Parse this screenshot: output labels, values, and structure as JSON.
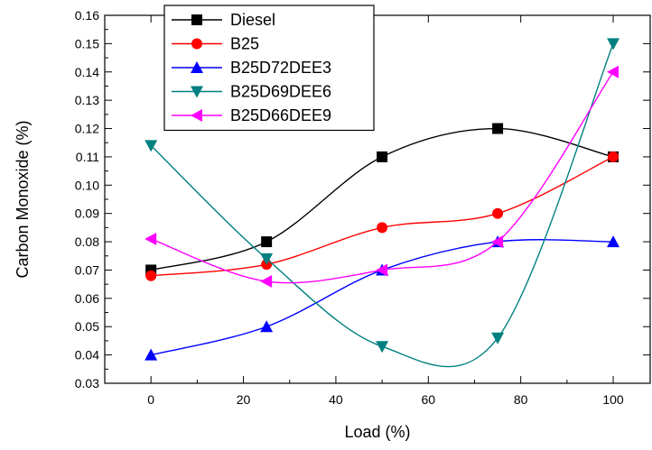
{
  "chart_data": {
    "type": "line",
    "title": "",
    "xlabel": "Load (%)",
    "ylabel": "Carbon Monoxide (%)",
    "xlim": [
      -10,
      108
    ],
    "ylim": [
      0.03,
      0.16
    ],
    "x_ticks": [
      "0",
      "20",
      "40",
      "60",
      "80",
      "100"
    ],
    "y_ticks": [
      "0.03",
      "0.04",
      "0.05",
      "0.06",
      "0.07",
      "0.08",
      "0.09",
      "0.10",
      "0.11",
      "0.12",
      "0.13",
      "0.14",
      "0.15",
      "0.16"
    ],
    "grid": false,
    "legend_position": "top-left",
    "x": [
      0,
      25,
      50,
      75,
      100
    ],
    "series": [
      {
        "name": "Diesel",
        "values": [
          0.07,
          0.08,
          0.11,
          0.12,
          0.11
        ],
        "color": "#000000",
        "marker": "square"
      },
      {
        "name": "B25",
        "values": [
          0.068,
          0.072,
          0.085,
          0.09,
          0.11
        ],
        "color": "#ff0000",
        "marker": "circle"
      },
      {
        "name": "B25D72DEE3",
        "values": [
          0.04,
          0.05,
          0.07,
          0.08,
          0.08
        ],
        "color": "#0000ff",
        "marker": "triangle-up"
      },
      {
        "name": "B25D69DEE6",
        "values": [
          0.114,
          0.074,
          0.043,
          0.046,
          0.15
        ],
        "color": "#008080",
        "marker": "triangle-down"
      },
      {
        "name": "B25D66DEE9",
        "values": [
          0.081,
          0.066,
          0.07,
          0.08,
          0.14
        ],
        "color": "#ff00ff",
        "marker": "triangle-left"
      }
    ]
  }
}
